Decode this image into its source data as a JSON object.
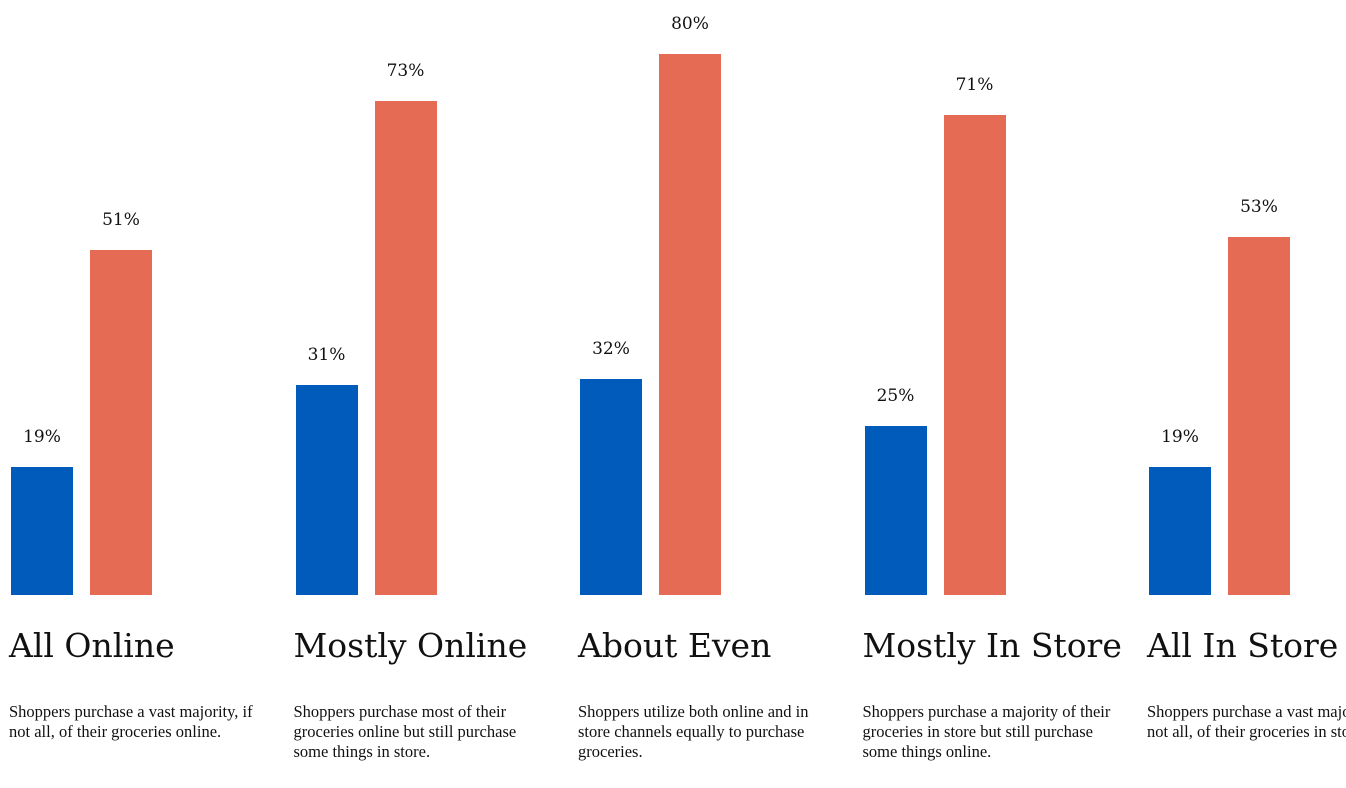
{
  "chart_data": {
    "type": "bar",
    "categories": [
      "All Online",
      "Mostly Online",
      "About Even",
      "Mostly In Store",
      "All In Store"
    ],
    "descriptions": [
      "Shoppers purchase a vast majority, if not all, of their groceries online.",
      "Shoppers purchase most of their groceries online but still purchase some things in store.",
      "Shoppers utilize both online and in store channels equally to purchase groceries.",
      "Shoppers purchase a majority of their groceries in store but still purchase some things online.",
      "Shoppers purchase a vast majority, if not all, of their groceries in store."
    ],
    "series": [
      {
        "color": "#005bbb",
        "values": [
          19,
          31,
          32,
          25,
          19
        ],
        "value_labels": [
          "19%",
          "31%",
          "32%",
          "25%",
          "19%"
        ]
      },
      {
        "color": "#e56b55",
        "values": [
          51,
          73,
          80,
          71,
          53
        ],
        "value_labels": [
          "51%",
          "73%",
          "80%",
          "71%",
          "53%"
        ]
      }
    ],
    "ylim": [
      0,
      80
    ]
  }
}
